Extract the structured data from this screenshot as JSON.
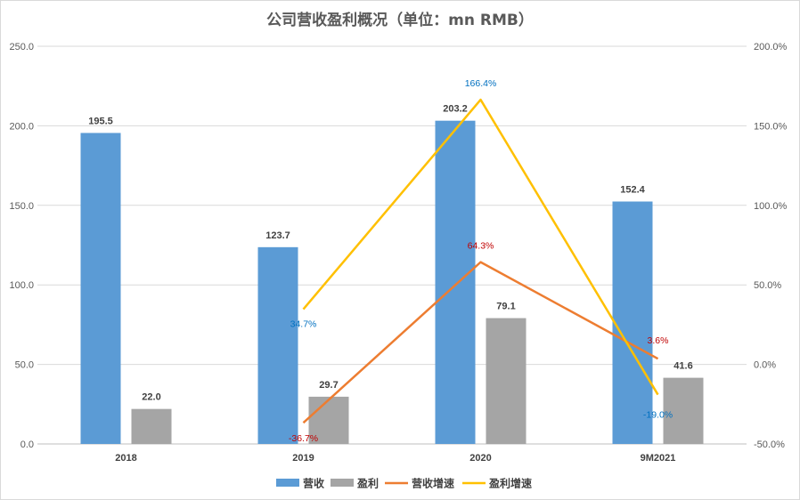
{
  "chart_data": {
    "type": "bar",
    "title": "公司营收盈利概况（单位：mn RMB）",
    "categories": [
      "2018",
      "2019",
      "2020",
      "9M2021"
    ],
    "series": [
      {
        "name": "营收",
        "type": "bar",
        "axis": "left",
        "color": "#5b9bd5",
        "values": [
          195.5,
          123.7,
          203.2,
          152.4
        ],
        "labels": [
          "195.5",
          "123.7",
          "203.2",
          "152.4"
        ]
      },
      {
        "name": "盈利",
        "type": "bar",
        "axis": "left",
        "color": "#a5a5a5",
        "values": [
          22.0,
          29.7,
          79.1,
          41.6
        ],
        "labels": [
          "22.0",
          "29.7",
          "79.1",
          "41.6"
        ]
      },
      {
        "name": "营收增速",
        "type": "line",
        "axis": "right",
        "color": "#ed7d31",
        "label_color": "#c00000",
        "values": [
          null,
          -36.7,
          64.3,
          3.6
        ],
        "labels": [
          "",
          "-36.7%",
          "64.3%",
          "3.6%"
        ]
      },
      {
        "name": "盈利增速",
        "type": "line",
        "axis": "right",
        "color": "#ffc000",
        "label_color": "#0070c0",
        "values": [
          null,
          34.7,
          166.4,
          -19.0
        ],
        "labels": [
          "",
          "34.7%",
          "166.4%",
          "-19.0%"
        ]
      }
    ],
    "y_left": {
      "min": 0,
      "max": 250,
      "step": 50,
      "ticks": [
        "0.0",
        "50.0",
        "100.0",
        "150.0",
        "200.0",
        "250.0"
      ]
    },
    "y_right": {
      "min": -50,
      "max": 200,
      "step": 50,
      "ticks": [
        "-50.0%",
        "0.0%",
        "50.0%",
        "100.0%",
        "150.0%",
        "200.0%"
      ]
    },
    "grid": true,
    "legend_position": "bottom"
  }
}
